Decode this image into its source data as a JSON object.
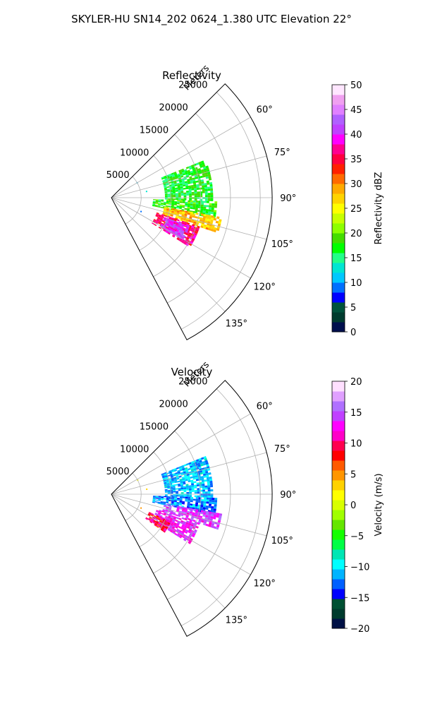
{
  "figure": {
    "title": "SKYLER-HU  SN14_202  0624_1.380 UTC Elevation 22°"
  },
  "colors": {
    "ref_stops": [
      "#000f4d",
      "#003b2e",
      "#00533c",
      "#0000ff",
      "#0070ff",
      "#00c8ff",
      "#00e6d2",
      "#22ff88",
      "#00ff00",
      "#44dd00",
      "#8dff00",
      "#c8ff00",
      "#ffff00",
      "#ffd400",
      "#ffaa00",
      "#ff6a00",
      "#ff2000",
      "#ff0040",
      "#ff0090",
      "#ff00ff",
      "#c040ff",
      "#b060ff",
      "#e080ff",
      "#f0a0f0",
      "#ffe6ff"
    ],
    "vel_stops": [
      "#001045",
      "#003b2e",
      "#005033",
      "#0000ff",
      "#0060ff",
      "#00b4ff",
      "#00ffff",
      "#00e6b4",
      "#00ff46",
      "#14ff00",
      "#64e600",
      "#a0ff00",
      "#d8ff00",
      "#ffff00",
      "#ffd200",
      "#ff9600",
      "#ff5a00",
      "#ff0000",
      "#ff0050",
      "#ff00c8",
      "#ff00ff",
      "#c040ff",
      "#b070ff",
      "#e0a0ff",
      "#ffe0ff"
    ],
    "grid": "#b0b0b0"
  },
  "chart_data": [
    {
      "type": "heatmap",
      "title": "Reflectivity",
      "radial_label": "Meters",
      "radial_ticks": [
        "5000",
        "10000",
        "15000",
        "20000",
        "25000"
      ],
      "rmax": 27000,
      "azimuth_range_deg": [
        45,
        152
      ],
      "azimuth_ticks": [
        "60°",
        "75°",
        "90°",
        "105°",
        "120°",
        "135°"
      ],
      "colorbar": {
        "label": "Reflectivity dBZ",
        "ticks": [
          "0",
          "5",
          "10",
          "15",
          "20",
          "25",
          "30",
          "35",
          "40",
          "45",
          "50"
        ],
        "range": [
          0,
          50
        ]
      },
      "echo_regions": [
        {
          "az_deg": [
            68,
            92
          ],
          "range_m": [
            9000,
            17000
          ],
          "value": 17
        },
        {
          "az_deg": [
            92,
            101
          ],
          "range_m": [
            7000,
            17500
          ],
          "value": 18
        },
        {
          "az_deg": [
            100,
            108
          ],
          "range_m": [
            9000,
            18500
          ],
          "value": 28
        },
        {
          "az_deg": [
            108,
            122
          ],
          "range_m": [
            8000,
            15500
          ],
          "value": 36
        },
        {
          "az_deg": [
            110,
            120
          ],
          "range_m": [
            9500,
            14000
          ],
          "value": 41
        }
      ],
      "scatter_echoes": [
        {
          "az_deg": 60,
          "range_m": 5000,
          "value": 10
        },
        {
          "az_deg": 80,
          "range_m": 6000,
          "value": 12
        },
        {
          "az_deg": 115,
          "range_m": 5500,
          "value": 8
        }
      ]
    },
    {
      "type": "heatmap",
      "title": "Velocity",
      "radial_label": "Meters",
      "radial_ticks": [
        "5000",
        "10000",
        "15000",
        "20000",
        "25000"
      ],
      "rmax": 27000,
      "azimuth_range_deg": [
        45,
        152
      ],
      "azimuth_ticks": [
        "60°",
        "75°",
        "90°",
        "105°",
        "120°",
        "135°"
      ],
      "colorbar": {
        "label": "Velocity (m/s)",
        "ticks": [
          "−20",
          "−15",
          "−10",
          "−5",
          "0",
          "5",
          "10",
          "15",
          "20"
        ],
        "range": [
          -20,
          20
        ]
      },
      "echo_regions": [
        {
          "az_deg": [
            68,
            92
          ],
          "range_m": [
            9000,
            17000
          ],
          "value": -11
        },
        {
          "az_deg": [
            92,
            101
          ],
          "range_m": [
            7000,
            17500
          ],
          "value": -12
        },
        {
          "az_deg": [
            100,
            108
          ],
          "range_m": [
            9000,
            18500
          ],
          "value": 14
        },
        {
          "az_deg": [
            108,
            122
          ],
          "range_m": [
            8000,
            15500
          ],
          "value": 13
        },
        {
          "az_deg": [
            115,
            125
          ],
          "range_m": [
            7000,
            11000
          ],
          "value": 9
        }
      ],
      "scatter_echoes": [
        {
          "az_deg": 62,
          "range_m": 5000,
          "value": 2
        },
        {
          "az_deg": 82,
          "range_m": 6000,
          "value": 3
        },
        {
          "az_deg": 115,
          "range_m": 5500,
          "value": 4
        }
      ]
    }
  ]
}
